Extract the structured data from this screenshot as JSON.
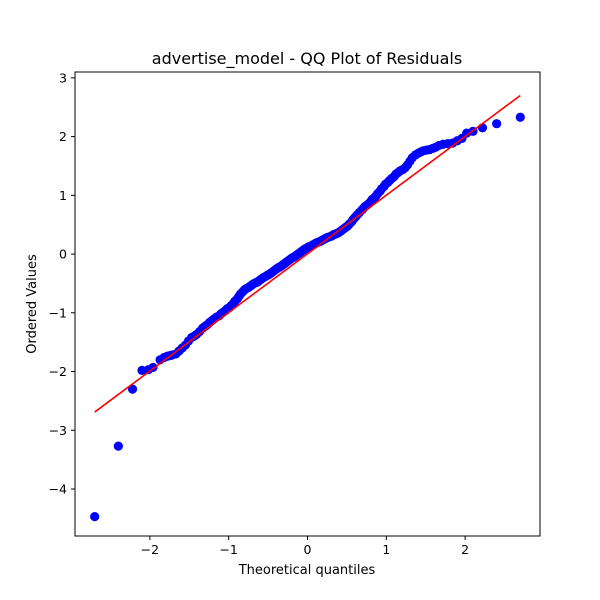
{
  "chart_data": {
    "type": "scatter",
    "title": "advertise_model - QQ Plot of Residuals",
    "xlabel": "Theoretical quantiles",
    "ylabel": "Ordered Values",
    "xlim": [
      -2.95,
      2.95
    ],
    "ylim": [
      -4.8,
      3.1
    ],
    "x_ticks": [
      -2,
      -1,
      0,
      1,
      2
    ],
    "x_tick_labels": [
      "−2",
      "−1",
      "0",
      "1",
      "2"
    ],
    "y_ticks": [
      -4,
      -3,
      -2,
      -1,
      0,
      1,
      2,
      3
    ],
    "y_tick_labels": [
      "−4",
      "−3",
      "−2",
      "−1",
      "0",
      "1",
      "2",
      "3"
    ],
    "grid": false,
    "point_color": "#0000ff",
    "line_color": "#ff0000",
    "fit_line": {
      "x": [
        -2.7,
        2.7
      ],
      "y": [
        -2.69,
        2.7
      ]
    },
    "points": {
      "x": [
        -2.7,
        -2.4,
        -2.22,
        -2.1,
        -2.02,
        -1.96,
        -1.87,
        -1.82,
        -1.78,
        -1.75,
        -1.72,
        -1.67,
        -1.63,
        -1.59,
        -1.55,
        -1.51,
        -1.47,
        -1.44,
        -1.41,
        -1.37,
        -1.33,
        -1.3,
        -1.27,
        -1.24,
        -1.21,
        -1.18,
        -1.15,
        -1.12,
        -1.1,
        -1.07,
        -1.04,
        -1.02,
        -0.99,
        -0.97,
        -0.94,
        -0.92,
        -0.89,
        -0.87,
        -0.85,
        -0.82,
        -0.8,
        -0.78,
        -0.75,
        -0.73,
        -0.71,
        -0.69,
        -0.66,
        -0.64,
        -0.62,
        -0.6,
        -0.58,
        -0.56,
        -0.53,
        -0.51,
        -0.49,
        -0.47,
        -0.45,
        -0.43,
        -0.41,
        -0.39,
        -0.37,
        -0.35,
        -0.33,
        -0.31,
        -0.29,
        -0.27,
        -0.25,
        -0.23,
        -0.21,
        -0.19,
        -0.17,
        -0.15,
        -0.13,
        -0.11,
        -0.09,
        -0.07,
        -0.05,
        -0.03,
        -0.01,
        0.01,
        0.03,
        0.05,
        0.07,
        0.09,
        0.11,
        0.13,
        0.15,
        0.17,
        0.19,
        0.21,
        0.23,
        0.25,
        0.27,
        0.29,
        0.31,
        0.33,
        0.35,
        0.37,
        0.39,
        0.41,
        0.43,
        0.45,
        0.47,
        0.49,
        0.51,
        0.53,
        0.56,
        0.58,
        0.6,
        0.62,
        0.64,
        0.66,
        0.69,
        0.71,
        0.73,
        0.75,
        0.78,
        0.8,
        0.82,
        0.85,
        0.87,
        0.89,
        0.92,
        0.94,
        0.97,
        0.99,
        1.02,
        1.04,
        1.07,
        1.1,
        1.12,
        1.15,
        1.18,
        1.21,
        1.24,
        1.27,
        1.3,
        1.33,
        1.37,
        1.41,
        1.44,
        1.47,
        1.51,
        1.55,
        1.59,
        1.63,
        1.67,
        1.72,
        1.78,
        1.84,
        1.9,
        1.96,
        2.02,
        2.1,
        2.22,
        2.4,
        2.7
      ],
      "y": [
        -4.47,
        -3.27,
        -2.3,
        -1.98,
        -1.97,
        -1.93,
        -1.8,
        -1.76,
        -1.74,
        -1.73,
        -1.72,
        -1.7,
        -1.65,
        -1.6,
        -1.55,
        -1.48,
        -1.42,
        -1.4,
        -1.37,
        -1.32,
        -1.26,
        -1.23,
        -1.2,
        -1.16,
        -1.13,
        -1.1,
        -1.07,
        -1.05,
        -1.02,
        -0.99,
        -0.96,
        -0.93,
        -0.91,
        -0.88,
        -0.84,
        -0.8,
        -0.76,
        -0.72,
        -0.68,
        -0.64,
        -0.61,
        -0.59,
        -0.57,
        -0.55,
        -0.53,
        -0.51,
        -0.49,
        -0.48,
        -0.46,
        -0.44,
        -0.42,
        -0.4,
        -0.38,
        -0.36,
        -0.35,
        -0.33,
        -0.31,
        -0.29,
        -0.27,
        -0.25,
        -0.23,
        -0.22,
        -0.2,
        -0.18,
        -0.16,
        -0.14,
        -0.12,
        -0.1,
        -0.08,
        -0.06,
        -0.05,
        -0.03,
        -0.01,
        0.01,
        0.03,
        0.05,
        0.07,
        0.09,
        0.1,
        0.12,
        0.13,
        0.14,
        0.16,
        0.17,
        0.19,
        0.2,
        0.21,
        0.22,
        0.24,
        0.25,
        0.27,
        0.28,
        0.29,
        0.3,
        0.31,
        0.33,
        0.34,
        0.35,
        0.36,
        0.38,
        0.4,
        0.42,
        0.44,
        0.46,
        0.48,
        0.51,
        0.55,
        0.59,
        0.62,
        0.65,
        0.68,
        0.71,
        0.75,
        0.78,
        0.81,
        0.83,
        0.86,
        0.89,
        0.93,
        0.96,
        0.99,
        1.03,
        1.07,
        1.11,
        1.15,
        1.19,
        1.22,
        1.25,
        1.29,
        1.32,
        1.36,
        1.39,
        1.42,
        1.44,
        1.47,
        1.52,
        1.58,
        1.64,
        1.69,
        1.72,
        1.74,
        1.76,
        1.77,
        1.78,
        1.8,
        1.82,
        1.85,
        1.87,
        1.88,
        1.89,
        1.93,
        1.97,
        2.06,
        2.09,
        2.15,
        2.22,
        2.33
      ]
    }
  }
}
